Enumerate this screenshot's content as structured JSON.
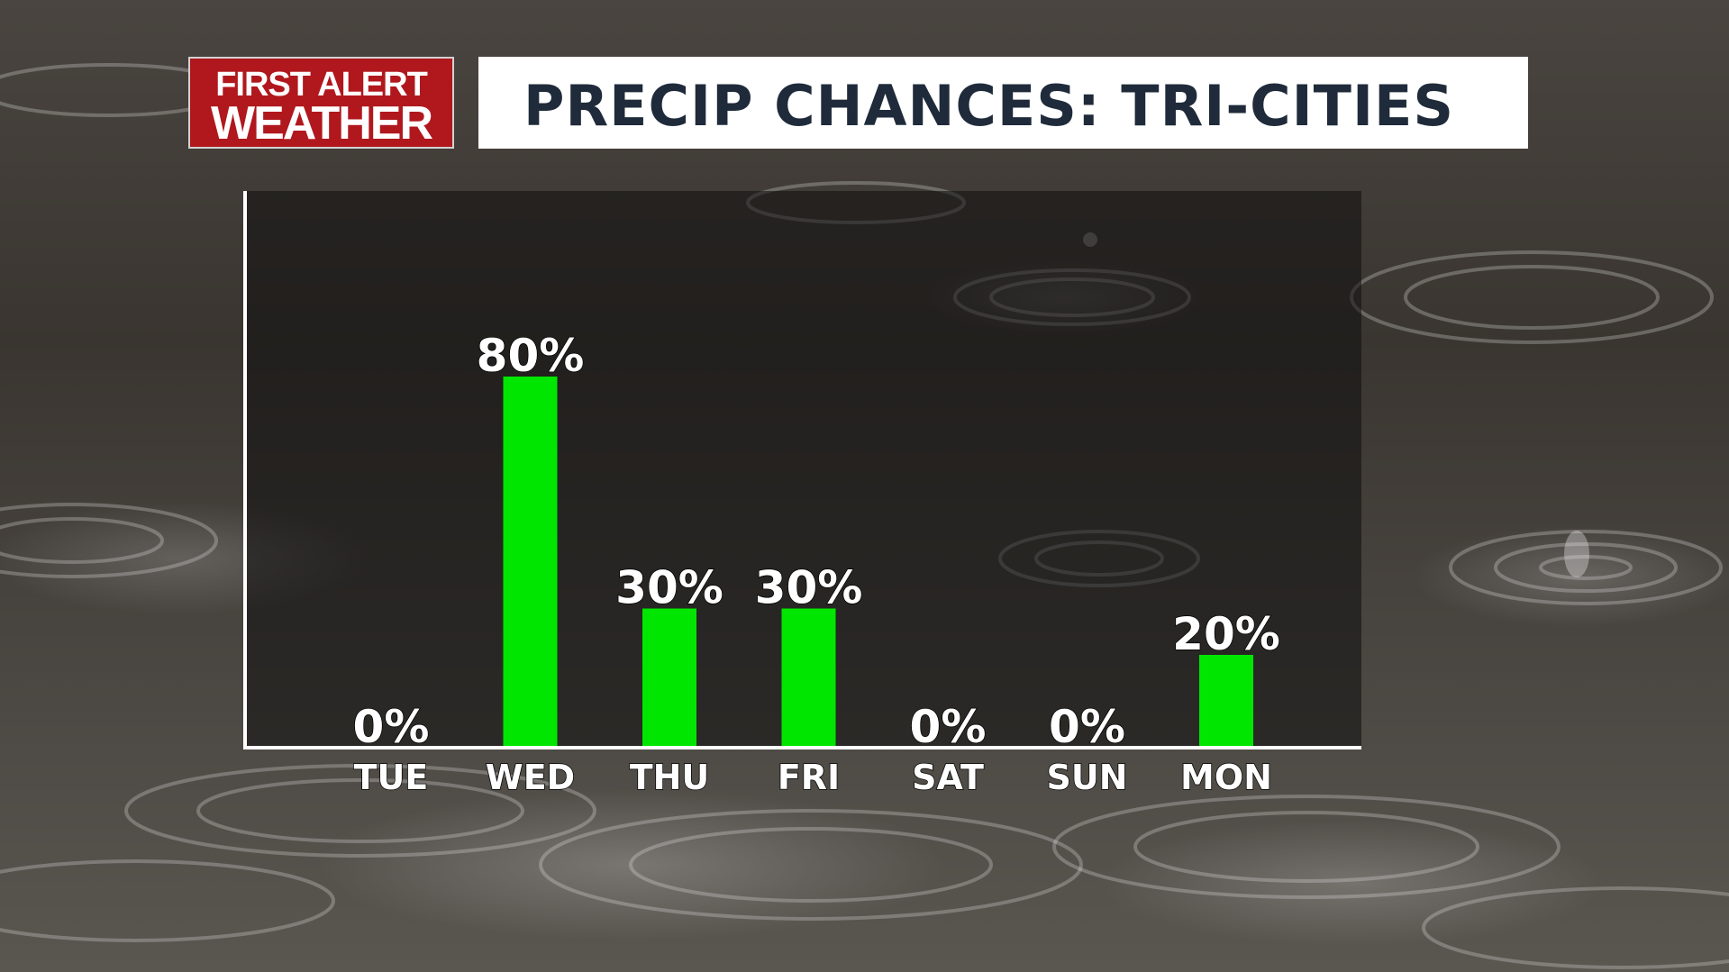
{
  "header": {
    "logo_line1": "FIRST ALERT",
    "logo_line2": "WEATHER",
    "title": "PRECIP CHANCES: TRI-CITIES"
  },
  "colors": {
    "bar": "#00e600",
    "logo_red": "#b0181d",
    "title_text": "#1f2b3a",
    "axis": "#ffffff"
  },
  "chart_data": {
    "type": "bar",
    "title": "PRECIP CHANCES: TRI-CITIES",
    "categories": [
      "TUE",
      "WED",
      "THU",
      "FRI",
      "SAT",
      "SUN",
      "MON"
    ],
    "values": [
      0,
      80,
      30,
      30,
      0,
      0,
      20
    ],
    "value_labels": [
      "0%",
      "80%",
      "30%",
      "30%",
      "0%",
      "0%",
      "20%"
    ],
    "ylim": [
      0,
      100
    ],
    "xlabel": "",
    "ylabel": "",
    "grid": false,
    "legend": "none"
  }
}
